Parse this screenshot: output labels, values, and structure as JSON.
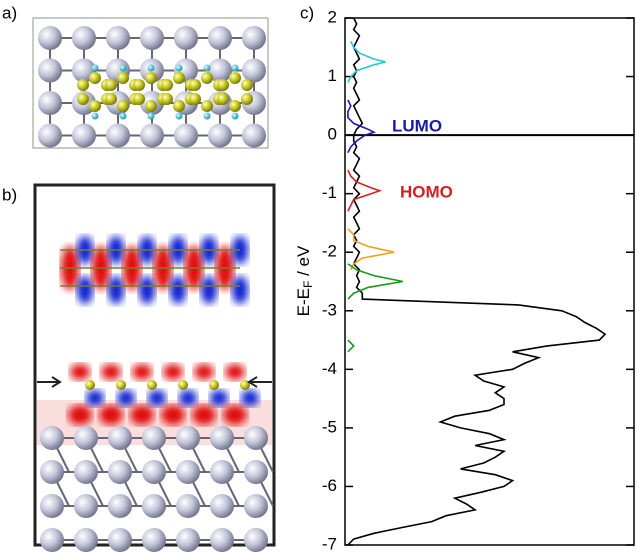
{
  "panels": [
    "a)",
    "b)",
    "c)"
  ],
  "chart_data": {
    "type": "line",
    "ylabel": [
      "E-E",
      "F",
      " / eV"
    ],
    "ylim": [
      -7,
      2
    ],
    "yticks": [
      -7,
      -6,
      -5,
      -4,
      -3,
      -2,
      -1,
      0,
      1,
      2
    ],
    "xlim": [
      0,
      1
    ],
    "fermi_line": 0,
    "annotations": [
      {
        "text": "LUMO",
        "color": "#1a1aa6"
      },
      {
        "text": "HOMO",
        "color": "#d42020"
      }
    ],
    "series": [
      {
        "color": "#000000",
        "y": [
          2,
          1.9,
          1.8,
          1.7,
          1.6,
          1.5,
          1.4,
          1.3,
          1.2,
          1.1,
          1,
          0.9,
          0.8,
          0.7,
          0.6,
          0.5,
          0.4,
          0.3,
          0.2,
          0.1,
          0,
          -0.1,
          -0.2,
          -0.3,
          -0.4,
          -0.5,
          -0.6,
          -0.7,
          -0.8,
          -0.9,
          -1,
          -1.1,
          -1.2,
          -1.3,
          -1.4,
          -1.5,
          -1.6,
          -1.7,
          -1.8,
          -1.9,
          -2,
          -2.1,
          -2.2,
          -2.3,
          -2.4,
          -2.5,
          -2.6,
          -2.7,
          -2.8,
          -2.9,
          -3,
          -3.1,
          -3.2,
          -3.3,
          -3.4,
          -3.5,
          -3.6,
          -3.7,
          -3.8,
          -3.9,
          -4,
          -4.1,
          -4.2,
          -4.3,
          -4.4,
          -4.5,
          -4.6,
          -4.7,
          -4.8,
          -4.9,
          -5,
          -5.1,
          -5.2,
          -5.3,
          -5.4,
          -5.5,
          -5.6,
          -5.7,
          -5.8,
          -5.9,
          -6,
          -6.1,
          -6.2,
          -6.3,
          -6.4,
          -6.5,
          -6.6,
          -6.7,
          -6.8,
          -6.9,
          -7
        ],
        "values": [
          0.03,
          0.04,
          0.03,
          0.05,
          0.04,
          0.03,
          0.04,
          0.05,
          0.03,
          0.04,
          0.03,
          0.04,
          0.03,
          0.04,
          0.05,
          0.03,
          0.04,
          0.05,
          0.06,
          0.04,
          0.03,
          0.03,
          0.04,
          0.03,
          0.05,
          0.04,
          0.03,
          0.05,
          0.04,
          0.03,
          0.05,
          0.03,
          0.04,
          0.05,
          0.03,
          0.04,
          0.05,
          0.03,
          0.04,
          0.03,
          0.05,
          0.04,
          0.03,
          0.05,
          0.04,
          0.05,
          0.04,
          0.06,
          0.06,
          0.6,
          0.75,
          0.8,
          0.83,
          0.87,
          0.9,
          0.88,
          0.7,
          0.58,
          0.67,
          0.62,
          0.58,
          0.45,
          0.48,
          0.55,
          0.52,
          0.55,
          0.55,
          0.5,
          0.38,
          0.33,
          0.4,
          0.5,
          0.55,
          0.45,
          0.55,
          0.52,
          0.48,
          0.4,
          0.52,
          0.58,
          0.55,
          0.47,
          0.38,
          0.42,
          0.45,
          0.35,
          0.3,
          0.2,
          0.1,
          0.03,
          0.01
        ]
      },
      {
        "color": "#22c8d8",
        "y": [
          1.6,
          1.5,
          1.4,
          1.3,
          1.25,
          1.2,
          1.1,
          1,
          0.9
        ],
        "values": [
          0.02,
          0.03,
          0.05,
          0.1,
          0.14,
          0.1,
          0.04,
          0.02,
          0.01
        ]
      },
      {
        "color": "#1a1aa6",
        "y": [
          0.6,
          0.5,
          0.4,
          0.3,
          0.2,
          0.1,
          0.05,
          0,
          -0.1,
          -0.2,
          -0.3
        ],
        "values": [
          0.01,
          0.02,
          0.01,
          0.01,
          0.03,
          0.08,
          0.1,
          0.07,
          0.04,
          0.02,
          0.01
        ]
      },
      {
        "color": "#d42020",
        "y": [
          -0.6,
          -0.7,
          -0.8,
          -0.9,
          -0.95,
          -1,
          -1.1,
          -1.2,
          -1.3
        ],
        "values": [
          0.01,
          0.02,
          0.04,
          0.09,
          0.12,
          0.09,
          0.03,
          0.02,
          0.01
        ]
      },
      {
        "color": "#f0a020",
        "y": [
          -1.6,
          -1.7,
          -1.8,
          -1.9,
          -2,
          -2.1,
          -2.2,
          -2.3
        ],
        "values": [
          0.01,
          0.03,
          0.03,
          0.08,
          0.17,
          0.06,
          0.03,
          0.02
        ]
      },
      {
        "color": "#1a9a1a",
        "y": [
          -2.2,
          -2.3,
          -2.4,
          -2.5,
          -2.6,
          -2.7,
          -2.8,
          -3.2,
          -3.5,
          -3.6,
          -3.7
        ],
        "values": [
          0.01,
          0.04,
          0.1,
          0.2,
          0.08,
          0.03,
          0.01,
          null,
          0.01,
          0.03,
          0.01
        ]
      }
    ]
  }
}
